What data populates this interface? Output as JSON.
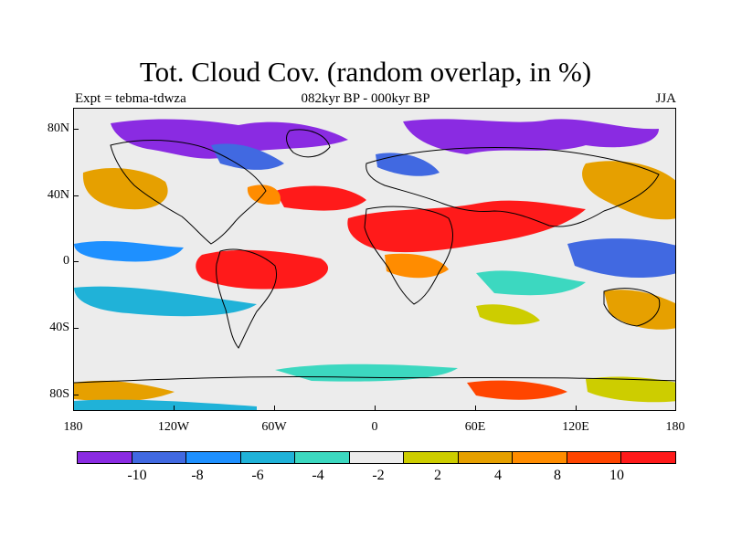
{
  "title": "Tot. Cloud Cov. (random overlap, in %)",
  "subtitle_left": "Expt = tebma-tdwza",
  "subtitle_center": "082kyr BP - 000kyr BP",
  "subtitle_right": "JJA",
  "lat_labels": [
    "80N",
    "40N",
    "0",
    "40S",
    "80S"
  ],
  "lon_labels": [
    "180",
    "120W",
    "60W",
    "0",
    "60E",
    "120E",
    "180"
  ],
  "colorbar": {
    "colors": [
      "#8a2be2",
      "#4169e1",
      "#1e90ff",
      "#20b2d8",
      "#3cd8c0",
      "#ececec",
      "#cdcd00",
      "#e6a000",
      "#ff8c00",
      "#ff4500",
      "#ff1a1a"
    ],
    "labels": [
      "-10",
      "-8",
      "-6",
      "-4",
      "-2",
      "2",
      "4",
      "8",
      "10"
    ]
  },
  "legend": {
    "units": "%",
    "range": "-10 to 10"
  }
}
